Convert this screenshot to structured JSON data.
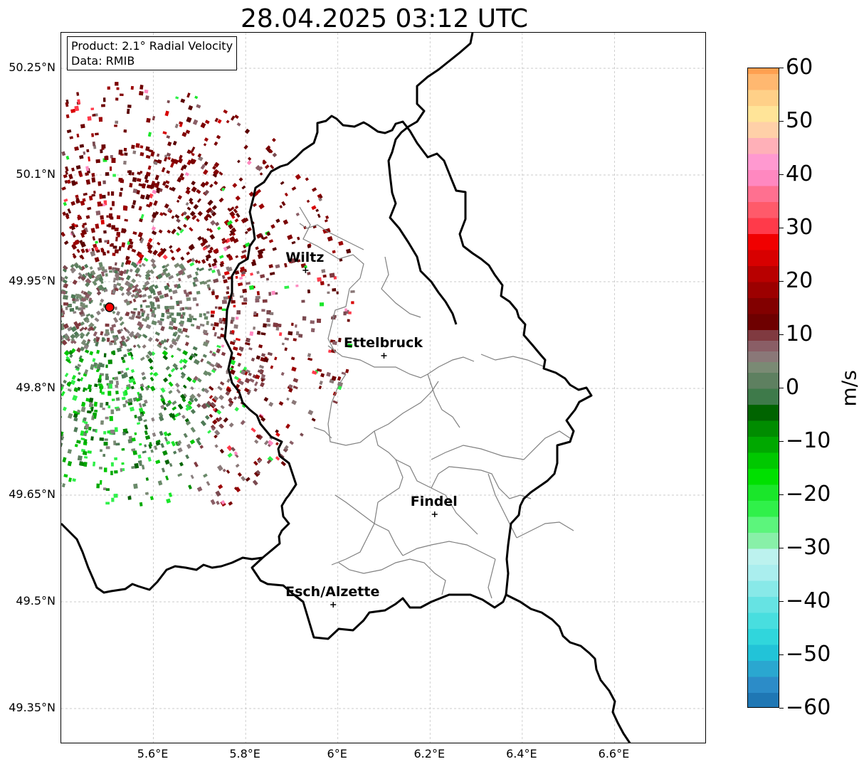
{
  "title": "28.04.2025 03:12 UTC",
  "info": {
    "product": "Product: 2.1° Radial Velocity",
    "data": "Data: RMIB"
  },
  "y_ticks": [
    "50.25°N",
    "50.1°N",
    "49.95°N",
    "49.8°N",
    "49.65°N",
    "49.5°N",
    "49.35°N"
  ],
  "x_ticks": [
    "5.6°E",
    "5.8°E",
    "6°E",
    "6.2°E",
    "6.4°E",
    "6.6°E"
  ],
  "cities": [
    {
      "name": "Wiltz",
      "lon": 5.93,
      "lat": 49.966
    },
    {
      "name": "Ettelbruck",
      "lon": 6.1,
      "lat": 49.846
    },
    {
      "name": "Findel",
      "lon": 6.21,
      "lat": 49.623
    },
    {
      "name": "Esch/Alzette",
      "lon": 5.99,
      "lat": 49.496
    }
  ],
  "radar_site": {
    "lon": 5.505,
    "lat": 49.914
  },
  "colorbar": {
    "unit": "m/s",
    "min": -60,
    "max": 60,
    "ticks": [
      "60",
      "50",
      "40",
      "30",
      "20",
      "10",
      "0",
      "−10",
      "−20",
      "−30",
      "−40",
      "−50",
      "−60"
    ]
  }
}
